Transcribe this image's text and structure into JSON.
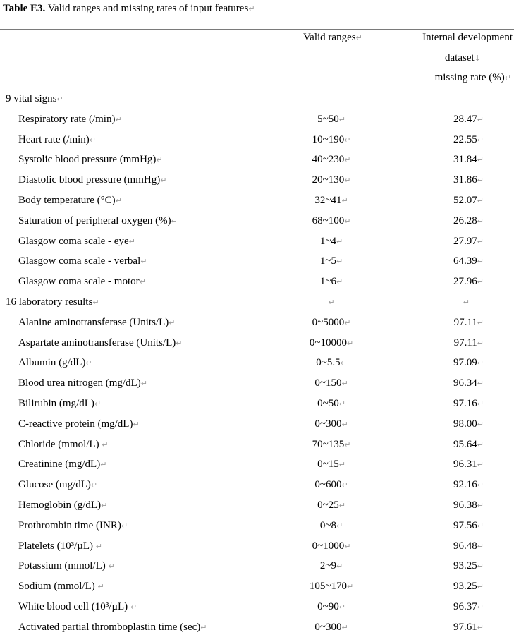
{
  "caption": {
    "label": "Table E3.",
    "text": " Valid ranges and missing rates of input features",
    "mark": "↵"
  },
  "headers": {
    "valid_ranges": "Valid ranges",
    "internal_line1": "Internal development",
    "internal_line2": "dataset",
    "internal_line3": "missing rate (%)",
    "mark": "↵",
    "down_mark": "↓"
  },
  "rows": [
    {
      "name": "9 vital signs",
      "range": "",
      "rate": "",
      "section": true,
      "m1": "↵",
      "m2": "",
      "m3": ""
    },
    {
      "name": "Respiratory rate (/min)",
      "range": "5~50",
      "rate": "28.47",
      "m1": "↵",
      "m2": "↵",
      "m3": "↵"
    },
    {
      "name": "Heart rate (/min)",
      "range": "10~190",
      "rate": "22.55",
      "m1": "↵",
      "m2": "↵",
      "m3": "↵"
    },
    {
      "name": "Systolic blood pressure (mmHg)",
      "range": "40~230",
      "rate": "31.84",
      "m1": "↵",
      "m2": "↵",
      "m3": "↵"
    },
    {
      "name": "Diastolic blood pressure (mmHg)",
      "range": "20~130",
      "rate": "31.86",
      "m1": "↵",
      "m2": "↵",
      "m3": "↵"
    },
    {
      "name": "Body temperature (°C)",
      "range": "32~41",
      "rate": "52.07",
      "m1": "↵",
      "m2": "↵",
      "m3": "↵"
    },
    {
      "name": "Saturation of peripheral oxygen (%)",
      "range": "68~100",
      "rate": "26.28",
      "m1": "↵",
      "m2": "↵",
      "m3": "↵"
    },
    {
      "name": "Glasgow coma scale - eye",
      "range": "1~4",
      "rate": "27.97",
      "m1": "↵",
      "m2": "↵",
      "m3": "↵"
    },
    {
      "name": "Glasgow coma scale - verbal",
      "range": "1~5",
      "rate": "64.39",
      "m1": "↵",
      "m2": "↵",
      "m3": "↵"
    },
    {
      "name": "Glasgow coma scale - motor",
      "range": "1~6",
      "rate": "27.96",
      "m1": "↵",
      "m2": "↵",
      "m3": "↵"
    },
    {
      "name": "16 laboratory results",
      "range": "",
      "rate": "",
      "section": true,
      "m1": "↵",
      "m2": "↵",
      "m3": "↵"
    },
    {
      "name": "Alanine aminotransferase (Units/L)",
      "range": "0~5000",
      "rate": "97.11",
      "m1": "↵",
      "m2": "↵",
      "m3": "↵"
    },
    {
      "name": "Aspartate aminotransferase (Units/L)",
      "range": "0~10000",
      "rate": "97.11",
      "m1": "↵",
      "m2": "↵",
      "m3": "↵"
    },
    {
      "name": "Albumin (g/dL)",
      "range": "0~5.5",
      "rate": "97.09",
      "m1": "↵",
      "m2": "↵",
      "m3": "↵"
    },
    {
      "name": "Blood urea nitrogen (mg/dL)",
      "range": "0~150",
      "rate": "96.34",
      "m1": "↵",
      "m2": "↵",
      "m3": "↵"
    },
    {
      "name": "Bilirubin (mg/dL)",
      "range": "0~50",
      "rate": "97.16",
      "m1": "↵",
      "m2": "↵",
      "m3": "↵"
    },
    {
      "name": "C-reactive protein (mg/dL)",
      "range": "0~300",
      "rate": "98.00",
      "m1": "↵",
      "m2": "↵",
      "m3": "↵"
    },
    {
      "name": "Chloride (mmol/L) ",
      "range": "70~135",
      "rate": "95.64",
      "m1": "↵",
      "m2": "↵",
      "m3": "↵"
    },
    {
      "name": "Creatinine (mg/dL)",
      "range": "0~15",
      "rate": "96.31",
      "m1": "↵",
      "m2": "↵",
      "m3": "↵"
    },
    {
      "name": "Glucose (mg/dL)",
      "range": "0~600",
      "rate": "92.16",
      "m1": "↵",
      "m2": "↵",
      "m3": "↵"
    },
    {
      "name": "Hemoglobin (g/dL)",
      "range": "0~25",
      "rate": "96.38",
      "m1": "↵",
      "m2": "↵",
      "m3": "↵"
    },
    {
      "name": "Prothrombin time (INR)",
      "range": "0~8",
      "rate": "97.56",
      "m1": "↵",
      "m2": "↵",
      "m3": "↵"
    },
    {
      "name": "Platelets (10³/µL) ",
      "range": "0~1000",
      "rate": "96.48",
      "m1": "↵",
      "m2": "↵",
      "m3": "↵"
    },
    {
      "name": "Potassium (mmol/L) ",
      "range": "2~9",
      "rate": "93.25",
      "m1": "↵",
      "m2": "↵",
      "m3": "↵"
    },
    {
      "name": "Sodium (mmol/L) ",
      "range": "105~170",
      "rate": "93.25",
      "m1": "↵",
      "m2": "↵",
      "m3": "↵"
    },
    {
      "name": "White blood cell (10³/µL) ",
      "range": "0~90",
      "rate": "96.37",
      "m1": "↵",
      "m2": "↵",
      "m3": "↵"
    },
    {
      "name": "Activated partial thromboplastin time (sec)",
      "range": "0~300",
      "rate": "97.61",
      "m1": "↵",
      "m2": "↵",
      "m3": "↵"
    }
  ]
}
